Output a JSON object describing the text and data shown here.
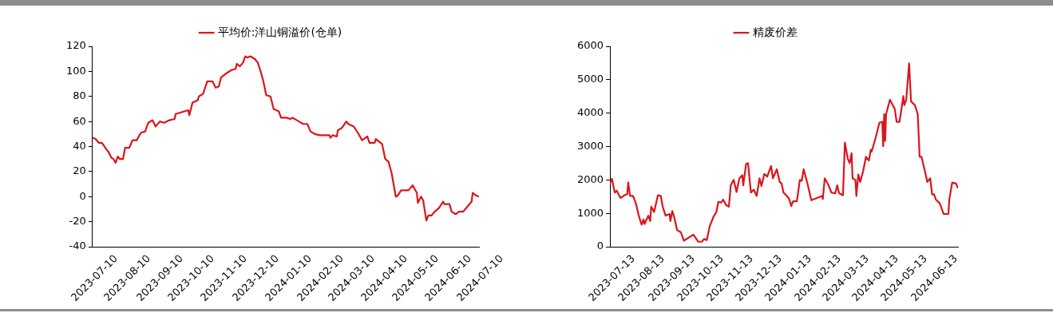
{
  "chart_data": [
    {
      "type": "line",
      "legend": "top",
      "marker": "none",
      "xlim": [
        "2023-07-10",
        "2024-07-11"
      ],
      "xticks": [
        "2023-07-10",
        "2023-08-10",
        "2023-09-10",
        "2023-10-10",
        "2023-11-10",
        "2023-12-10",
        "2024-01-10",
        "2024-02-10",
        "2024-03-10",
        "2024-04-10",
        "2024-05-10",
        "2024-06-10",
        "2024-07-10"
      ],
      "ylim": [
        -40,
        120
      ],
      "yticks": [
        -40,
        -20,
        0,
        20,
        40,
        60,
        80,
        100,
        120
      ],
      "x": [
        "2023-07-10",
        "2023-07-13",
        "2023-07-16",
        "2023-07-19",
        "2023-07-23",
        "2023-07-25",
        "2023-07-28",
        "2023-07-30",
        "2023-08-01",
        "2023-08-03",
        "2023-08-05",
        "2023-08-08",
        "2023-08-10",
        "2023-08-14",
        "2023-08-17",
        "2023-08-21",
        "2023-08-25",
        "2023-08-29",
        "2023-09-01",
        "2023-09-05",
        "2023-09-08",
        "2023-09-12",
        "2023-09-16",
        "2023-09-21",
        "2023-09-26",
        "2023-09-27",
        "2023-10-09",
        "2023-10-10",
        "2023-10-13",
        "2023-10-18",
        "2023-10-19",
        "2023-10-23",
        "2023-10-27",
        "2023-11-01",
        "2023-11-04",
        "2023-11-07",
        "2023-11-09",
        "2023-11-15",
        "2023-11-19",
        "2023-11-23",
        "2023-11-24",
        "2023-11-27",
        "2023-11-30",
        "2023-12-02",
        "2023-12-04",
        "2023-12-07",
        "2023-12-11",
        "2023-12-14",
        "2023-12-17",
        "2023-12-19",
        "2023-12-22",
        "2023-12-26",
        "2023-12-29",
        "2024-01-03",
        "2024-01-05",
        "2024-01-10",
        "2024-01-14",
        "2024-01-16",
        "2024-01-22",
        "2024-01-26",
        "2024-01-30",
        "2024-02-02",
        "2024-02-06",
        "2024-02-11",
        "2024-02-20",
        "2024-02-21",
        "2024-02-23",
        "2024-02-27",
        "2024-02-28",
        "2024-03-03",
        "2024-03-07",
        "2024-03-09",
        "2024-03-14",
        "2024-03-18",
        "2024-03-22",
        "2024-03-27",
        "2024-03-29",
        "2024-04-03",
        "2024-04-04",
        "2024-04-10",
        "2024-04-13",
        "2024-04-16",
        "2024-04-19",
        "2024-04-23",
        "2024-04-25",
        "2024-04-28",
        "2024-05-05",
        "2024-05-09",
        "2024-05-13",
        "2024-05-14",
        "2024-05-17",
        "2024-05-19",
        "2024-05-22",
        "2024-05-24",
        "2024-05-27",
        "2024-05-30",
        "2024-06-03",
        "2024-06-07",
        "2024-06-08",
        "2024-06-13",
        "2024-06-15",
        "2024-06-19",
        "2024-06-22",
        "2024-06-26",
        "2024-06-30",
        "2024-07-04",
        "2024-07-05",
        "2024-07-08",
        "2024-07-11"
      ],
      "series": [
        {
          "name": "平均价:洋山铜溢价(仓单)",
          "color": "#d9161c",
          "values": [
            47,
            46,
            43,
            43,
            38,
            36,
            31,
            30,
            27,
            32,
            30,
            30,
            39,
            39,
            45,
            45,
            51,
            52,
            59,
            61,
            56,
            60,
            59,
            61,
            62,
            66,
            69,
            65,
            75,
            77,
            80,
            82,
            92,
            92,
            87,
            88,
            95,
            99,
            101,
            102,
            106,
            104,
            107,
            112,
            111,
            112,
            110,
            107,
            99,
            93,
            81,
            80,
            70,
            68,
            63,
            63,
            62,
            63,
            60,
            58,
            58,
            52,
            50,
            49,
            49,
            47,
            49,
            48,
            53,
            55,
            60,
            58,
            56,
            51,
            45,
            48,
            43,
            43,
            46,
            42,
            30,
            28,
            19,
            0,
            1,
            5,
            5,
            9,
            3,
            -5,
            0,
            -3,
            -19,
            -15,
            -15,
            -12,
            -9,
            -4,
            -6,
            -6,
            -12,
            -14,
            -12,
            -12,
            -8,
            -4,
            3,
            1,
            0
          ]
        }
      ]
    },
    {
      "type": "line",
      "legend": "top",
      "marker": "none",
      "xlim": [
        "2023-07-13",
        "2024-07-10"
      ],
      "xticks": [
        "2023-07-13",
        "2023-08-13",
        "2023-09-13",
        "2023-10-13",
        "2023-11-13",
        "2023-12-13",
        "2024-01-13",
        "2024-02-13",
        "2024-03-13",
        "2024-04-13",
        "2024-05-13",
        "2024-06-13"
      ],
      "ylim": [
        0,
        6000
      ],
      "yticks": [
        0,
        1000,
        2000,
        3000,
        4000,
        5000,
        6000
      ],
      "x": [
        "2023-07-13",
        "2023-07-15",
        "2023-07-18",
        "2023-07-20",
        "2023-07-24",
        "2023-07-28",
        "2023-07-31",
        "2023-08-01",
        "2023-08-03",
        "2023-08-06",
        "2023-08-09",
        "2023-08-12",
        "2023-08-15",
        "2023-08-17",
        "2023-08-18",
        "2023-08-22",
        "2023-08-24",
        "2023-08-25",
        "2023-08-28",
        "2023-09-01",
        "2023-09-04",
        "2023-09-06",
        "2023-09-09",
        "2023-09-13",
        "2023-09-14",
        "2023-09-16",
        "2023-09-18",
        "2023-09-21",
        "2023-09-25",
        "2023-09-28",
        "2023-10-08",
        "2023-10-13",
        "2023-10-17",
        "2023-10-19",
        "2023-10-22",
        "2023-10-25",
        "2023-10-29",
        "2023-11-01",
        "2023-11-03",
        "2023-11-06",
        "2023-11-08",
        "2023-11-11",
        "2023-11-14",
        "2023-11-16",
        "2023-11-19",
        "2023-11-22",
        "2023-11-25",
        "2023-11-28",
        "2023-11-29",
        "2023-12-02",
        "2023-12-04",
        "2023-12-07",
        "2023-12-10",
        "2023-12-13",
        "2023-12-16",
        "2023-12-18",
        "2023-12-21",
        "2023-12-24",
        "2023-12-28",
        "2023-12-30",
        "2024-01-03",
        "2024-01-06",
        "2024-01-08",
        "2024-01-10",
        "2024-01-12",
        "2024-01-16",
        "2024-01-18",
        "2024-01-20",
        "2024-01-24",
        "2024-01-27",
        "2024-01-29",
        "2024-01-31",
        "2024-02-04",
        "2024-02-08",
        "2024-02-19",
        "2024-02-20",
        "2024-02-22",
        "2024-02-26",
        "2024-02-29",
        "2024-03-04",
        "2024-03-06",
        "2024-03-08",
        "2024-03-12",
        "2024-03-14",
        "2024-03-17",
        "2024-03-19",
        "2024-03-21",
        "2024-03-22",
        "2024-03-25",
        "2024-03-26",
        "2024-03-28",
        "2024-03-30",
        "2024-04-02",
        "2024-04-05",
        "2024-04-08",
        "2024-04-10",
        "2024-04-11",
        "2024-04-15",
        "2024-04-19",
        "2024-04-22",
        "2024-04-23",
        "2024-04-24",
        "2024-04-25",
        "2024-04-26",
        "2024-04-30",
        "2024-05-05",
        "2024-05-07",
        "2024-05-10",
        "2024-05-14",
        "2024-05-15",
        "2024-05-17",
        "2024-05-20",
        "2024-05-22",
        "2024-05-26",
        "2024-05-29",
        "2024-05-31",
        "2024-06-02",
        "2024-06-05",
        "2024-06-08",
        "2024-06-11",
        "2024-06-13",
        "2024-06-15",
        "2024-06-17",
        "2024-06-21",
        "2024-06-25",
        "2024-06-30",
        "2024-07-01",
        "2024-07-04",
        "2024-07-08",
        "2024-07-10"
      ],
      "series": [
        {
          "name": "精废价差",
          "color": "#d9161c",
          "values": [
            1890,
            2030,
            1620,
            1680,
            1460,
            1540,
            1570,
            1920,
            1520,
            1520,
            1300,
            930,
            660,
            820,
            680,
            930,
            770,
            1200,
            1040,
            1540,
            1520,
            1200,
            930,
            980,
            770,
            1070,
            880,
            500,
            430,
            180,
            360,
            150,
            150,
            230,
            200,
            610,
            900,
            1040,
            1340,
            1320,
            1410,
            1250,
            1200,
            1840,
            2000,
            1640,
            2050,
            2140,
            1840,
            2480,
            2500,
            1620,
            1710,
            1520,
            2050,
            1820,
            2180,
            2100,
            2420,
            2050,
            2320,
            1940,
            1890,
            1620,
            1570,
            1430,
            1220,
            1360,
            1360,
            2000,
            1970,
            2320,
            1890,
            1390,
            1520,
            1430,
            2050,
            1840,
            1620,
            1600,
            1840,
            1600,
            1540,
            3120,
            2640,
            2500,
            2800,
            2050,
            2000,
            1520,
            2160,
            1940,
            2260,
            2690,
            2580,
            2900,
            2850,
            3250,
            3710,
            3740,
            3010,
            3970,
            3170,
            3970,
            4400,
            4130,
            3740,
            3740,
            4510,
            4240,
            4400,
            5490,
            4350,
            4240,
            3970,
            2690,
            2690,
            2320,
            1940,
            2050,
            1570,
            1570,
            1410,
            1300,
            980,
            980,
            1430,
            1920,
            1890,
            1750
          ]
        }
      ]
    }
  ]
}
